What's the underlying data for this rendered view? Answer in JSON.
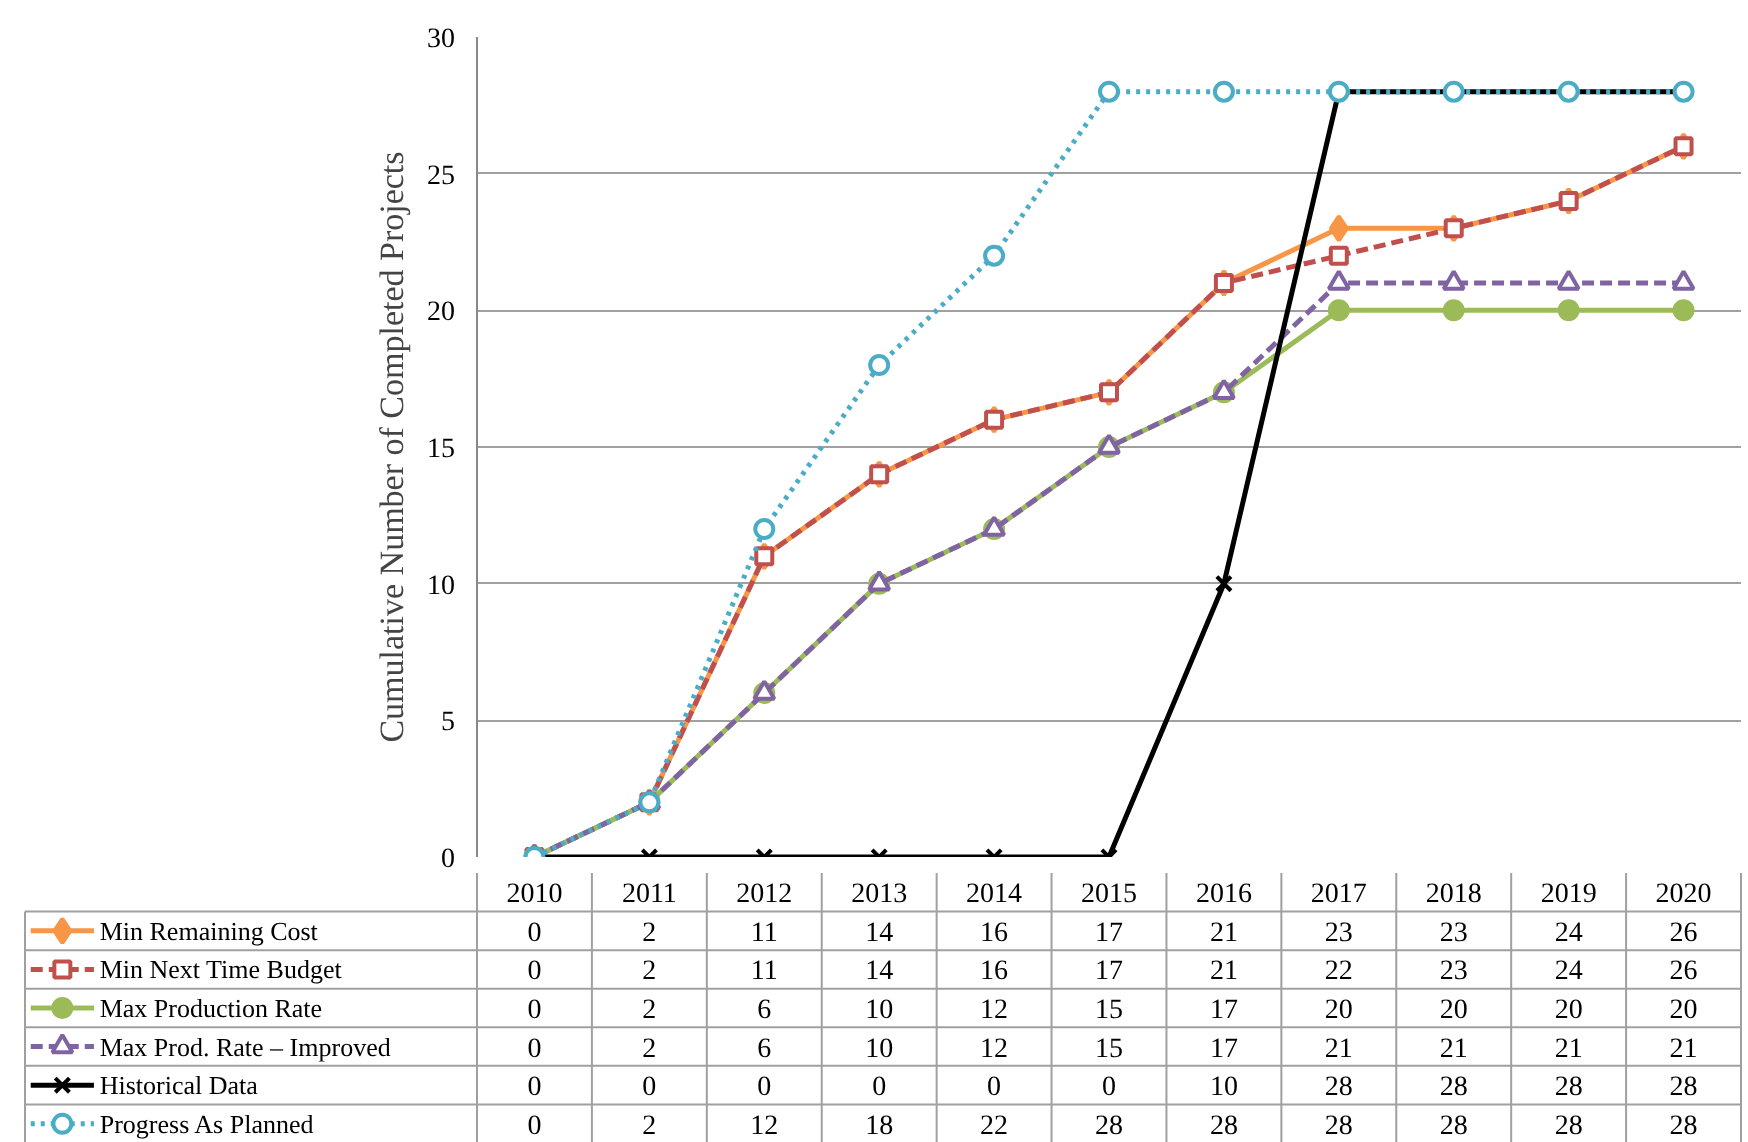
{
  "chart_data": {
    "type": "line",
    "ylabel": "Cumulative Number of Completed Projects",
    "categories": [
      "2010",
      "2011",
      "2012",
      "2013",
      "2014",
      "2015",
      "2016",
      "2017",
      "2018",
      "2019",
      "2020"
    ],
    "ylim": [
      0,
      30
    ],
    "yticks": [
      0,
      5,
      10,
      15,
      20,
      25,
      30
    ],
    "grid": "y",
    "legend": "bottom left",
    "data_labels": true,
    "series": [
      {
        "name": "Min Remaining Cost",
        "color": "#f79646",
        "marker": "diamond",
        "line_style": "solid",
        "values": [
          0,
          2,
          11,
          14,
          16,
          17,
          21,
          23,
          23,
          24,
          26
        ]
      },
      {
        "name": "Min Next Time Budget",
        "color": "#c0504d",
        "marker": "square",
        "line_style": "dashed",
        "values": [
          0,
          2,
          11,
          14,
          16,
          17,
          21,
          22,
          23,
          24,
          26
        ]
      },
      {
        "name": "Max Production Rate",
        "color": "#9bbb59",
        "marker": "circle",
        "line_style": "solid",
        "values": [
          0,
          2,
          6,
          10,
          12,
          15,
          17,
          20,
          20,
          20,
          20
        ]
      },
      {
        "name": "Max Prod. Rate – Improved",
        "color": "#8064a2",
        "marker": "triangle",
        "line_style": "dashed",
        "values": [
          0,
          2,
          6,
          10,
          12,
          15,
          17,
          21,
          21,
          21,
          21
        ]
      },
      {
        "name": "Historical Data",
        "color": "#000000",
        "marker": "cross",
        "line_style": "solid",
        "values": [
          0,
          0,
          0,
          0,
          0,
          0,
          10,
          28,
          28,
          28,
          28
        ]
      },
      {
        "name": "Progress As Planned",
        "color": "#4bacc6",
        "marker": "circle",
        "line_style": "dotted",
        "values": [
          0,
          2,
          12,
          18,
          22,
          28,
          28,
          28,
          28,
          28,
          28
        ]
      }
    ]
  }
}
